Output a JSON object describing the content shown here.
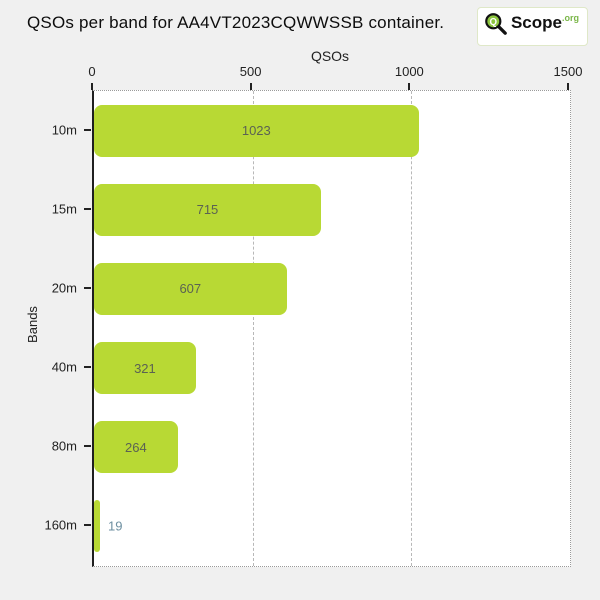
{
  "header": {
    "title": "QSOs per band for AA4VT2023CQWWSSB container.",
    "logo": {
      "q": "Q",
      "name": "Scope",
      "tld": ".org",
      "green": "#8dc63f"
    }
  },
  "chart_data": {
    "type": "bar",
    "orientation": "horizontal",
    "title": "QSOs per band for AA4VT2023CQWWSSB container.",
    "xlabel": "QSOs",
    "ylabel": "Bands",
    "categories": [
      "10m",
      "15m",
      "20m",
      "40m",
      "80m",
      "160m"
    ],
    "values": [
      1023,
      715,
      607,
      321,
      264,
      19
    ],
    "xlim": [
      0,
      1500
    ],
    "xticks": [
      0,
      500,
      1000,
      1500
    ],
    "grid": "vertical-dashed",
    "legend": "none",
    "bar_color": "#b8d934",
    "value_label_color": "#5b6253",
    "outside_value_label_color": "#6d8fa0"
  }
}
